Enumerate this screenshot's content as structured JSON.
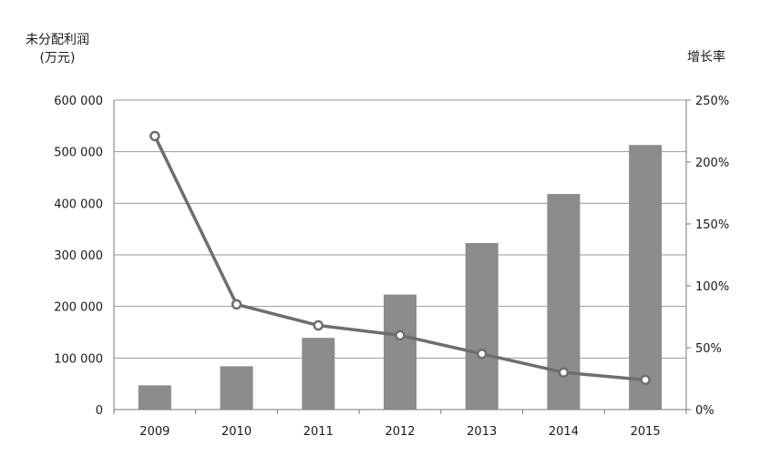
{
  "chart_data": {
    "type": "bar+line",
    "categories": [
      "2009",
      "2010",
      "2011",
      "2012",
      "2013",
      "2014",
      "2015"
    ],
    "series": [
      {
        "type": "bar",
        "axis": "left",
        "values": [
          47000,
          84000,
          139000,
          223000,
          323000,
          418000,
          513000
        ]
      },
      {
        "type": "line",
        "axis": "right",
        "values": [
          221,
          85,
          68,
          60,
          45,
          30,
          24
        ]
      }
    ],
    "ylabel": "未分配利润",
    "ylabel_unit": "(万元)",
    "y2label": "增长率",
    "ylim": [
      0,
      600000
    ],
    "y2lim": [
      0,
      250
    ],
    "yticks": [
      "0",
      "100 000",
      "200 000",
      "300 000",
      "400 000",
      "500 000",
      "600 000"
    ],
    "y2ticks": [
      "0%",
      "50%",
      "100%",
      "150%",
      "200%",
      "250%"
    ],
    "grid": true,
    "colors": {
      "bar": "#8c8c8c",
      "line": "#6e6e6e",
      "axis": "#7a7a7a"
    }
  }
}
